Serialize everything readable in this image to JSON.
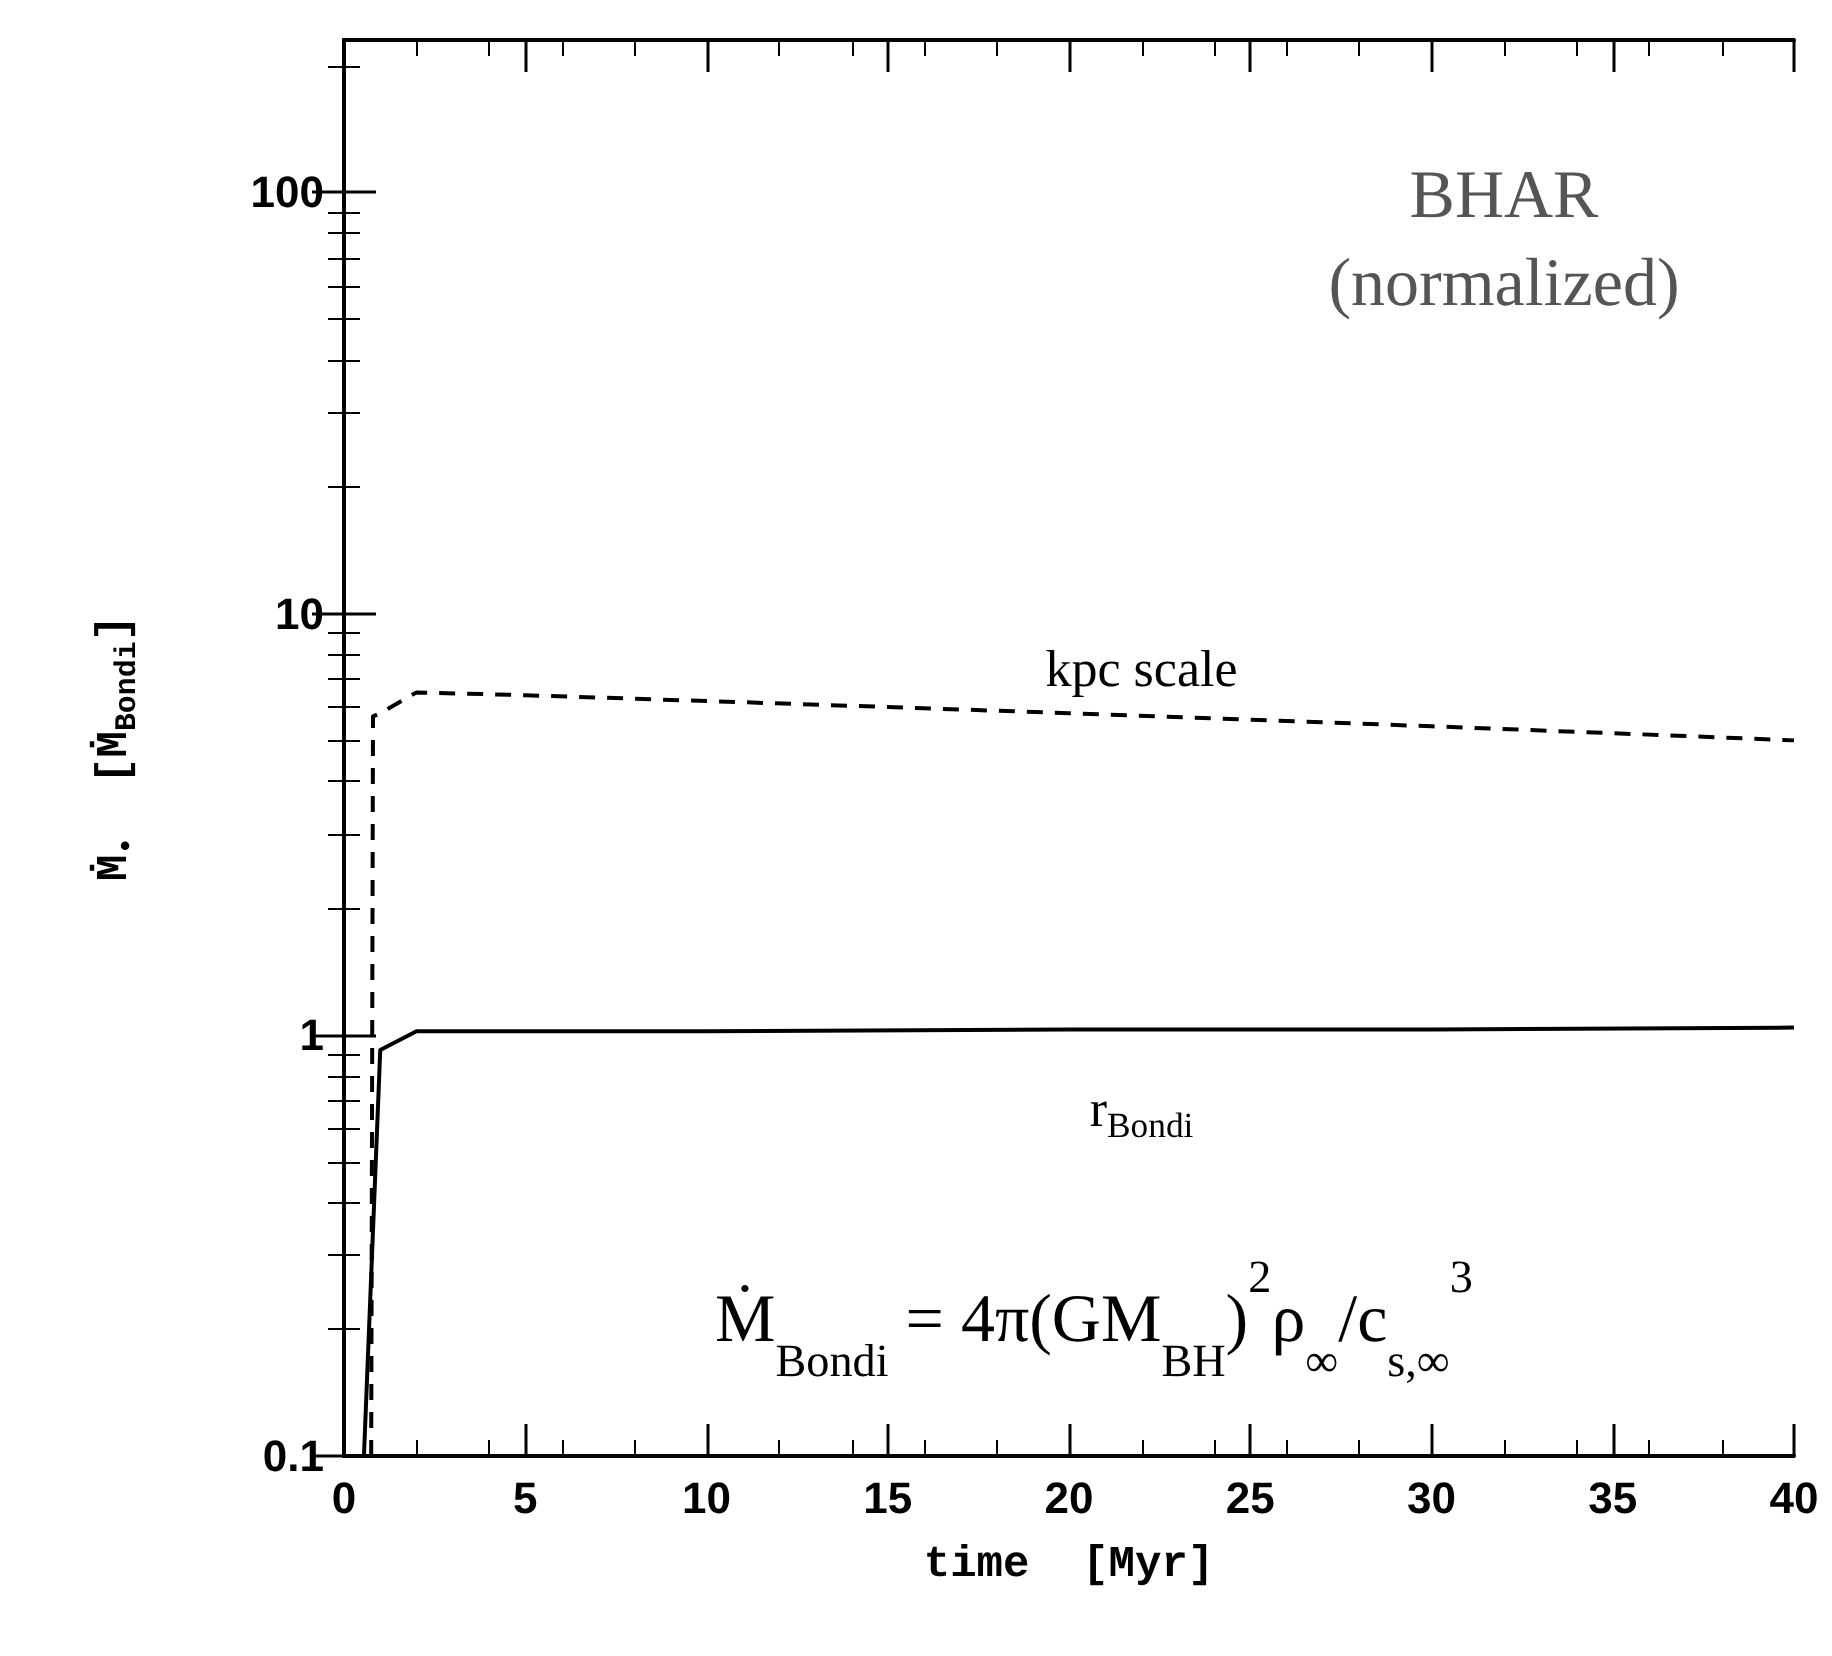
{
  "chart_data": {
    "type": "line",
    "xlabel": "time  [Myr]",
    "ylabel": "Ṁ$_{•}$  [Ṁ$_{Bondi}$]",
    "annotations": [
      "BHAR\n(normalized)",
      "Ṁ$_{Bondi}$ = 4π(GM$_{BH}$)$^{2}$ρ$_{∞}$/c$_{s,∞}$$^{3}$"
    ],
    "series": [
      {
        "name": "kpc scale",
        "color": "#000000",
        "line_style": "dashed",
        "x": [
          0.75,
          0.8,
          1.0,
          2,
          5,
          10,
          15,
          20,
          25,
          30,
          35,
          40
        ],
        "values": [
          0.1,
          5.7,
          5.8,
          6.5,
          6.4,
          6.2,
          6.0,
          5.8,
          5.6,
          5.4,
          5.2,
          5.0
        ]
      },
      {
        "name": "r$_{Bondi}$",
        "color": "#000000",
        "line_style": "solid",
        "x": [
          0.55,
          1.0,
          2,
          10,
          20,
          30,
          40
        ],
        "values": [
          0.1,
          0.92,
          1.02,
          1.02,
          1.03,
          1.03,
          1.04
        ]
      }
    ],
    "xlim": [
      0,
      40
    ],
    "xticks": [
      0,
      5,
      10,
      15,
      20,
      25,
      30,
      35,
      40
    ],
    "ylim": [
      0.1,
      230
    ],
    "yticks": [
      0.1,
      1,
      10,
      100
    ],
    "log": "y",
    "grid": false,
    "legend": false,
    "marker": "none"
  }
}
